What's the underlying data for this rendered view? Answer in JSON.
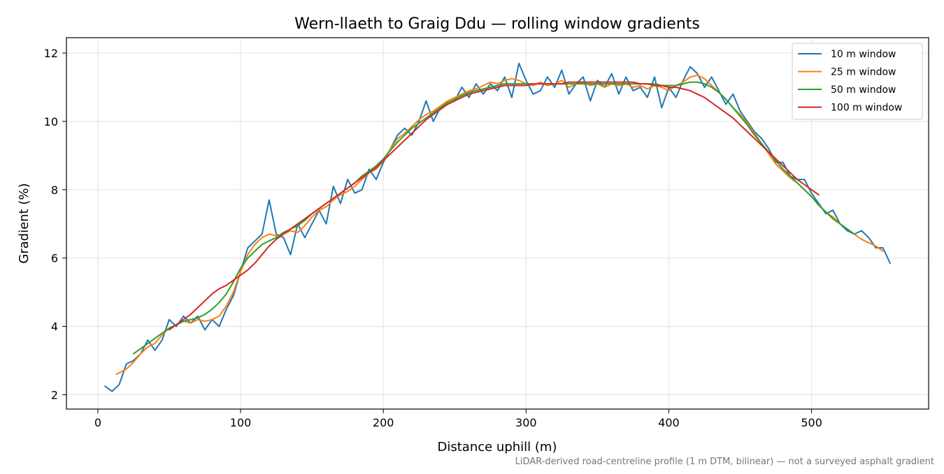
{
  "chart_data": {
    "type": "line",
    "title": "Wern-llaeth to Graig Ddu — rolling window gradients",
    "xlabel": "Distance uphill (m)",
    "ylabel": "Gradient (%)",
    "footnote": "LiDAR-derived road-centreline profile (1 m DTM, bilinear) — not a surveyed asphalt gradient",
    "xlim": [
      -22,
      582
    ],
    "ylim": [
      1.58,
      12.45
    ],
    "xticks": [
      0,
      100,
      200,
      300,
      400,
      500
    ],
    "yticks": [
      2,
      4,
      6,
      8,
      10,
      12
    ],
    "grid": true,
    "legend_position": "top-right",
    "series": [
      {
        "name": "10 m window",
        "color": "#1f77b4",
        "x": [
          5,
          10,
          15,
          20,
          25,
          30,
          35,
          40,
          45,
          50,
          55,
          60,
          65,
          70,
          75,
          80,
          85,
          90,
          95,
          100,
          105,
          110,
          115,
          120,
          125,
          130,
          135,
          140,
          145,
          150,
          155,
          160,
          165,
          170,
          175,
          180,
          185,
          190,
          195,
          200,
          205,
          210,
          215,
          220,
          225,
          230,
          235,
          240,
          245,
          250,
          255,
          260,
          265,
          270,
          275,
          280,
          285,
          290,
          295,
          300,
          305,
          310,
          315,
          320,
          325,
          330,
          335,
          340,
          345,
          350,
          355,
          360,
          365,
          370,
          375,
          380,
          385,
          390,
          395,
          400,
          405,
          410,
          415,
          420,
          425,
          430,
          435,
          440,
          445,
          450,
          455,
          460,
          465,
          470,
          475,
          480,
          485,
          490,
          495,
          500,
          505,
          510,
          515,
          520,
          525,
          530,
          535,
          540,
          545,
          550,
          555
        ],
        "values": [
          2.25,
          2.1,
          2.3,
          2.9,
          3.0,
          3.2,
          3.6,
          3.3,
          3.6,
          4.2,
          4.0,
          4.3,
          4.1,
          4.3,
          3.9,
          4.2,
          4.0,
          4.5,
          4.9,
          5.6,
          6.3,
          6.5,
          6.7,
          7.7,
          6.7,
          6.6,
          6.1,
          7.0,
          6.6,
          7.0,
          7.4,
          7.0,
          8.1,
          7.6,
          8.3,
          7.9,
          8.0,
          8.6,
          8.3,
          8.8,
          9.2,
          9.6,
          9.8,
          9.6,
          10.0,
          10.6,
          10.0,
          10.4,
          10.5,
          10.6,
          11.0,
          10.7,
          11.1,
          10.8,
          11.1,
          10.9,
          11.3,
          10.7,
          11.7,
          11.2,
          10.8,
          10.9,
          11.3,
          11.0,
          11.5,
          10.8,
          11.1,
          11.3,
          10.6,
          11.2,
          11.0,
          11.4,
          10.8,
          11.3,
          10.9,
          11.0,
          10.7,
          11.3,
          10.4,
          11.0,
          10.7,
          11.2,
          11.6,
          11.4,
          11.0,
          11.3,
          10.9,
          10.5,
          10.8,
          10.3,
          10.0,
          9.7,
          9.5,
          9.2,
          8.8,
          8.8,
          8.4,
          8.3,
          8.3,
          7.9,
          7.6,
          7.3,
          7.4,
          7.0,
          6.8,
          6.7,
          6.8,
          6.6,
          6.3,
          6.3,
          5.85
        ]
      },
      {
        "name": "25 m window",
        "color": "#ff7f0e",
        "x": [
          13,
          20,
          25,
          30,
          35,
          40,
          45,
          50,
          55,
          60,
          65,
          70,
          75,
          80,
          85,
          90,
          95,
          100,
          105,
          110,
          115,
          120,
          125,
          130,
          135,
          140,
          145,
          150,
          155,
          160,
          165,
          170,
          175,
          180,
          185,
          190,
          195,
          200,
          205,
          210,
          215,
          220,
          225,
          230,
          235,
          240,
          245,
          250,
          255,
          260,
          265,
          270,
          275,
          280,
          285,
          290,
          295,
          300,
          305,
          310,
          315,
          320,
          325,
          330,
          335,
          340,
          345,
          350,
          355,
          360,
          365,
          370,
          375,
          380,
          385,
          390,
          395,
          400,
          405,
          410,
          415,
          420,
          425,
          430,
          435,
          440,
          445,
          450,
          455,
          460,
          465,
          470,
          475,
          480,
          485,
          490,
          495,
          500,
          505,
          510,
          515,
          520,
          525,
          530,
          535,
          540,
          545,
          550
        ],
        "values": [
          2.6,
          2.75,
          2.95,
          3.2,
          3.4,
          3.5,
          3.75,
          3.95,
          4.05,
          4.15,
          4.1,
          4.2,
          4.15,
          4.2,
          4.3,
          4.6,
          5.0,
          5.6,
          6.1,
          6.4,
          6.6,
          6.7,
          6.65,
          6.7,
          6.8,
          6.75,
          6.95,
          7.2,
          7.4,
          7.5,
          7.7,
          7.85,
          7.95,
          8.1,
          8.3,
          8.5,
          8.6,
          8.85,
          9.2,
          9.5,
          9.65,
          9.85,
          10.05,
          10.2,
          10.3,
          10.45,
          10.6,
          10.7,
          10.8,
          10.9,
          10.95,
          11.05,
          11.15,
          11.1,
          11.2,
          11.25,
          11.2,
          11.1,
          11.05,
          11.15,
          11.05,
          11.1,
          11.2,
          11.0,
          11.1,
          11.15,
          11.05,
          11.1,
          11.0,
          11.1,
          11.05,
          11.1,
          11.0,
          11.05,
          10.95,
          11.05,
          11.0,
          10.9,
          11.05,
          11.15,
          11.3,
          11.35,
          11.25,
          11.05,
          10.85,
          10.65,
          10.4,
          10.2,
          9.95,
          9.65,
          9.35,
          9.05,
          8.75,
          8.55,
          8.35,
          8.2,
          8.0,
          7.8,
          7.55,
          7.35,
          7.2,
          7.0,
          6.85,
          6.7,
          6.55,
          6.45,
          6.35,
          6.2
        ]
      },
      {
        "name": "50 m window",
        "color": "#2ca02c",
        "x": [
          25,
          30,
          35,
          40,
          45,
          50,
          55,
          60,
          65,
          70,
          75,
          80,
          85,
          90,
          95,
          100,
          105,
          110,
          115,
          120,
          125,
          130,
          135,
          140,
          145,
          150,
          155,
          160,
          165,
          170,
          175,
          180,
          185,
          190,
          195,
          200,
          205,
          210,
          215,
          220,
          225,
          230,
          235,
          240,
          245,
          250,
          255,
          260,
          265,
          270,
          275,
          280,
          285,
          290,
          295,
          300,
          305,
          310,
          315,
          320,
          325,
          330,
          335,
          340,
          345,
          350,
          355,
          360,
          365,
          370,
          375,
          380,
          385,
          390,
          395,
          400,
          405,
          410,
          415,
          420,
          425,
          430,
          435,
          440,
          445,
          450,
          455,
          460,
          465,
          470,
          475,
          480,
          485,
          490,
          495,
          500,
          505,
          510,
          515,
          520,
          525,
          530
        ],
        "values": [
          3.2,
          3.35,
          3.5,
          3.65,
          3.8,
          3.95,
          4.05,
          4.15,
          4.2,
          4.25,
          4.35,
          4.5,
          4.7,
          4.95,
          5.3,
          5.7,
          6.0,
          6.2,
          6.4,
          6.5,
          6.6,
          6.75,
          6.85,
          6.95,
          7.1,
          7.3,
          7.45,
          7.6,
          7.75,
          7.9,
          8.05,
          8.2,
          8.4,
          8.55,
          8.7,
          8.9,
          9.15,
          9.4,
          9.6,
          9.8,
          9.95,
          10.1,
          10.25,
          10.4,
          10.55,
          10.65,
          10.75,
          10.85,
          10.9,
          10.95,
          11.0,
          11.05,
          11.1,
          11.1,
          11.1,
          11.1,
          11.1,
          11.1,
          11.1,
          11.1,
          11.1,
          11.1,
          11.1,
          11.1,
          11.1,
          11.1,
          11.1,
          11.1,
          11.1,
          11.1,
          11.1,
          11.1,
          11.1,
          11.1,
          11.05,
          11.05,
          11.05,
          11.1,
          11.15,
          11.15,
          11.1,
          11.0,
          10.85,
          10.65,
          10.4,
          10.15,
          9.9,
          9.6,
          9.35,
          9.1,
          8.85,
          8.6,
          8.4,
          8.2,
          8.0,
          7.8,
          7.55,
          7.35,
          7.15,
          7.0,
          6.85,
          6.7
        ]
      },
      {
        "name": "100 m window",
        "color": "#d62728",
        "x": [
          50,
          55,
          60,
          65,
          70,
          75,
          80,
          85,
          90,
          95,
          100,
          105,
          110,
          115,
          120,
          125,
          130,
          135,
          140,
          145,
          150,
          155,
          160,
          165,
          170,
          175,
          180,
          185,
          190,
          195,
          200,
          205,
          210,
          215,
          220,
          225,
          230,
          235,
          240,
          245,
          250,
          255,
          260,
          265,
          270,
          275,
          280,
          285,
          290,
          295,
          300,
          305,
          310,
          315,
          320,
          325,
          330,
          335,
          340,
          345,
          350,
          355,
          360,
          365,
          370,
          375,
          380,
          385,
          390,
          395,
          400,
          405,
          410,
          415,
          420,
          425,
          430,
          435,
          440,
          445,
          450,
          455,
          460,
          465,
          470,
          475,
          480,
          485,
          490,
          495,
          500,
          505
        ],
        "values": [
          3.9,
          4.05,
          4.2,
          4.35,
          4.55,
          4.75,
          4.95,
          5.1,
          5.2,
          5.35,
          5.5,
          5.65,
          5.85,
          6.1,
          6.35,
          6.55,
          6.7,
          6.85,
          7.0,
          7.15,
          7.3,
          7.45,
          7.6,
          7.75,
          7.9,
          8.05,
          8.2,
          8.35,
          8.5,
          8.65,
          8.85,
          9.05,
          9.25,
          9.45,
          9.65,
          9.85,
          10.05,
          10.2,
          10.35,
          10.5,
          10.6,
          10.7,
          10.8,
          10.85,
          10.9,
          10.95,
          11.0,
          11.05,
          11.05,
          11.05,
          11.05,
          11.1,
          11.1,
          11.1,
          11.1,
          11.1,
          11.15,
          11.15,
          11.15,
          11.15,
          11.15,
          11.15,
          11.15,
          11.15,
          11.15,
          11.15,
          11.1,
          11.1,
          11.05,
          11.05,
          11.0,
          11.0,
          10.95,
          10.9,
          10.8,
          10.7,
          10.55,
          10.4,
          10.25,
          10.1,
          9.9,
          9.7,
          9.5,
          9.3,
          9.1,
          8.9,
          8.7,
          8.5,
          8.3,
          8.15,
          8.0,
          7.85
        ]
      }
    ]
  }
}
